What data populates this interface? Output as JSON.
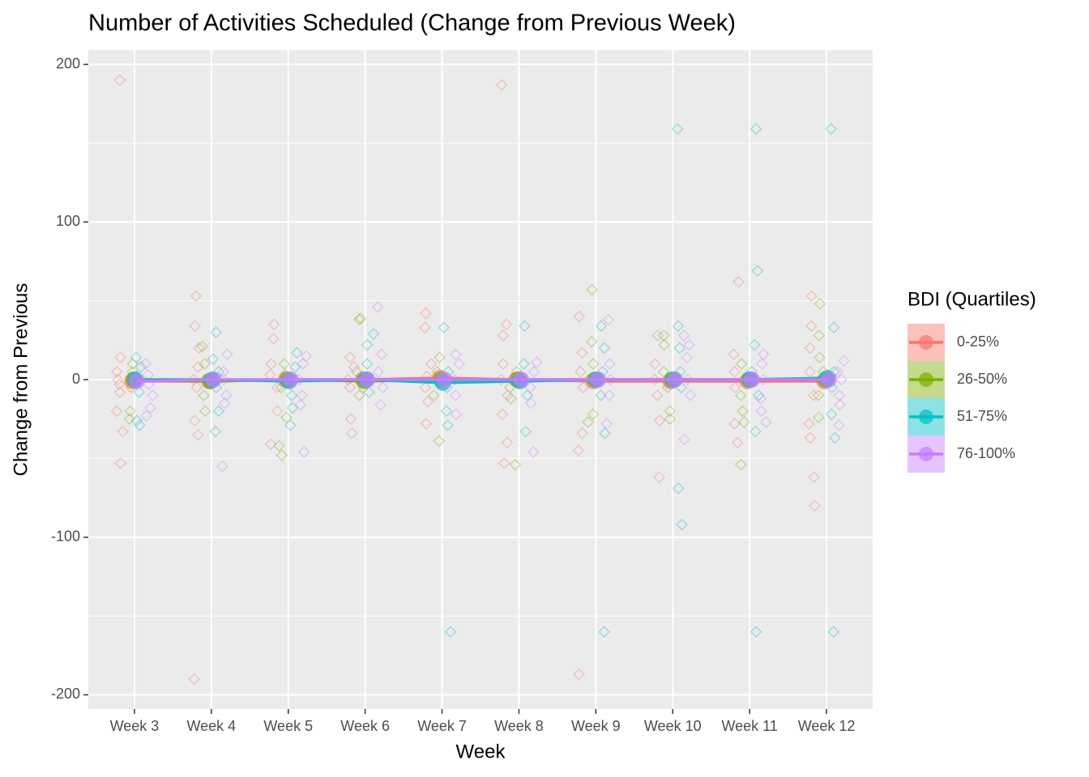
{
  "chart_data": {
    "type": "line",
    "title": "Number of Activities Scheduled (Change from Previous Week)",
    "x_label": "Week",
    "y_label": "Change from Previous",
    "categories": [
      "Week 3",
      "Week 4",
      "Week 5",
      "Week 6",
      "Week 7",
      "Week 8",
      "Week 9",
      "Week 10",
      "Week 11",
      "Week 12"
    ],
    "ylim": [
      -209,
      209
    ],
    "yticks": [
      -200,
      -100,
      0,
      100,
      200
    ],
    "grid": true,
    "legend": "right",
    "legend_title": "BDI (Quartiles)",
    "series": [
      {
        "name": "0-25%",
        "color": "#F8766D",
        "values": [
          -1,
          -1,
          0,
          0,
          1,
          0,
          -1,
          -1,
          -1,
          -1
        ],
        "points": [
          [
            190,
            14,
            5,
            0,
            -3,
            -8,
            -20,
            -33,
            -53
          ],
          [
            53,
            34,
            20,
            8,
            0,
            -5,
            -26,
            -35,
            -190
          ],
          [
            35,
            26,
            10,
            3,
            -5,
            -20,
            -41
          ],
          [
            14,
            8,
            0,
            -5,
            -25,
            -34
          ],
          [
            42,
            33,
            10,
            2,
            -5,
            -14,
            -28
          ],
          [
            187,
            35,
            28,
            10,
            0,
            -10,
            -22,
            -40,
            -53
          ],
          [
            40,
            17,
            5,
            -5,
            -34,
            -45,
            -187
          ],
          [
            28,
            10,
            0,
            -10,
            -26,
            -62
          ],
          [
            62,
            16,
            5,
            -5,
            -28,
            -40
          ],
          [
            53,
            34,
            20,
            5,
            -10,
            -28,
            -37,
            -62,
            -80
          ]
        ]
      },
      {
        "name": "26-50%",
        "color": "#7CAE00",
        "values": [
          0,
          -1,
          0,
          -1,
          0,
          0,
          0,
          0,
          0,
          0
        ],
        "points": [
          [
            10,
            5,
            0,
            -5,
            -20,
            -25
          ],
          [
            21,
            10,
            0,
            -10,
            -20
          ],
          [
            10,
            3,
            -5,
            -24,
            -42,
            -48
          ],
          [
            39,
            38,
            5,
            -5,
            -10
          ],
          [
            14,
            5,
            0,
            -10,
            -39
          ],
          [
            5,
            0,
            -5,
            -12,
            -54
          ],
          [
            57,
            24,
            10,
            0,
            -22,
            -27
          ],
          [
            28,
            22,
            5,
            -5,
            -20,
            -25
          ],
          [
            10,
            0,
            -10,
            -20,
            -27,
            -54
          ],
          [
            48,
            28,
            14,
            5,
            -10,
            -24
          ]
        ]
      },
      {
        "name": "51-75%",
        "color": "#00BFC4",
        "values": [
          0,
          0,
          -1,
          0,
          -2,
          -1,
          0,
          0,
          0,
          1
        ],
        "points": [
          [
            14,
            8,
            0,
            -8,
            -26,
            -29
          ],
          [
            30,
            13,
            5,
            -5,
            -20,
            -33
          ],
          [
            17,
            8,
            0,
            -10,
            -18,
            -29
          ],
          [
            29,
            22,
            10,
            0,
            -8
          ],
          [
            33,
            5,
            -5,
            -20,
            -29,
            -160
          ],
          [
            34,
            10,
            0,
            -10,
            -33
          ],
          [
            34,
            20,
            5,
            -10,
            -34,
            -160
          ],
          [
            159,
            34,
            20,
            5,
            -5,
            -69,
            -92
          ],
          [
            159,
            69,
            22,
            5,
            -10,
            -33,
            -160
          ],
          [
            159,
            33,
            5,
            -5,
            -22,
            -37,
            -160
          ]
        ]
      },
      {
        "name": "76-100%",
        "color": "#C77CFF",
        "values": [
          -1,
          0,
          0,
          0,
          0,
          0,
          0,
          0,
          0,
          0
        ],
        "points": [
          [
            10,
            3,
            -3,
            -10,
            -18,
            -23
          ],
          [
            16,
            5,
            0,
            -10,
            -15,
            -55
          ],
          [
            15,
            10,
            0,
            -10,
            -16,
            -46
          ],
          [
            46,
            16,
            5,
            -5,
            -16
          ],
          [
            16,
            10,
            0,
            -10,
            -22
          ],
          [
            11,
            5,
            -5,
            -15,
            -46
          ],
          [
            38,
            10,
            0,
            -10,
            -28
          ],
          [
            28,
            22,
            14,
            0,
            -10,
            -38
          ],
          [
            16,
            10,
            0,
            -12,
            -20,
            -27
          ],
          [
            12,
            5,
            0,
            -10,
            -16,
            -29
          ]
        ]
      }
    ]
  }
}
